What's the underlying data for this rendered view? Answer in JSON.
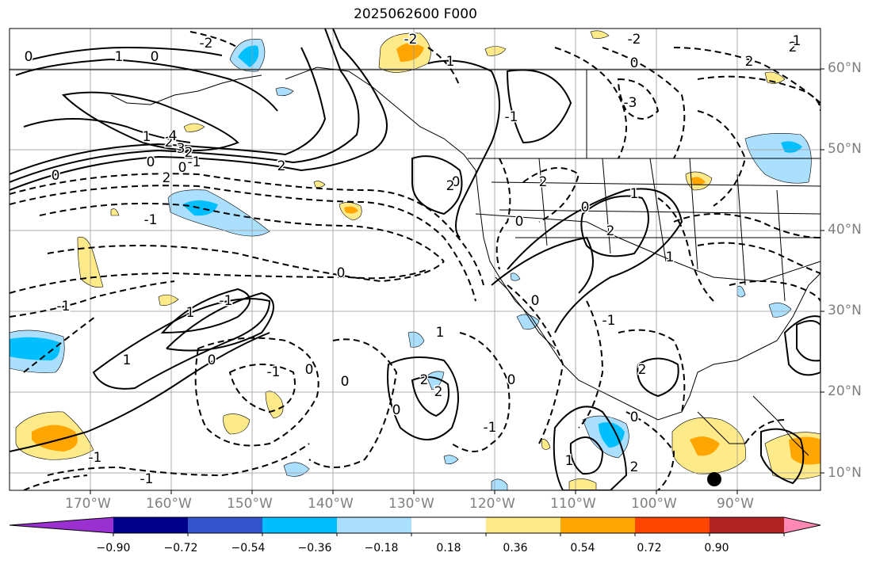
{
  "title": "2025062600 F000",
  "lat_labels": [
    "60°N",
    "50°N",
    "40°N",
    "30°N",
    "20°N",
    "10°N"
  ],
  "lon_labels": [
    "170°W",
    "160°W",
    "150°W",
    "140°W",
    "130°W",
    "120°W",
    "110°W",
    "100°W",
    "90°W"
  ],
  "colorbar": {
    "ticks": [
      "−0.90",
      "−0.72",
      "−0.54",
      "−0.36",
      "−0.18",
      "0.18",
      "0.36",
      "0.54",
      "0.72",
      "0.90"
    ],
    "colors": [
      "#9b30d0",
      "#00008b",
      "#3355cc",
      "#00bfff",
      "#aadfff",
      "#ffffff",
      "#ffea8a",
      "#ffa500",
      "#ff4500",
      "#b22222",
      "#ff89b4"
    ]
  },
  "contour_labels": [
    "0",
    "1",
    "0",
    "-2",
    "-2",
    "1",
    "-3",
    "-2",
    "2",
    "2",
    "0",
    "-1",
    "2",
    "-1",
    "1",
    "2",
    "-2",
    "2",
    "0",
    "-1",
    "1",
    "-1",
    "1",
    "0",
    "0",
    "-1",
    "0",
    "0",
    "2",
    "2",
    "1",
    "0",
    "-1",
    "1",
    "-1",
    "2",
    "2",
    "0",
    "1",
    "0",
    "-1",
    "4",
    "3",
    "0",
    "0",
    "2",
    "1",
    "2",
    "1",
    "-1",
    "-1",
    "0",
    "2",
    "0",
    "0",
    "0"
  ]
}
